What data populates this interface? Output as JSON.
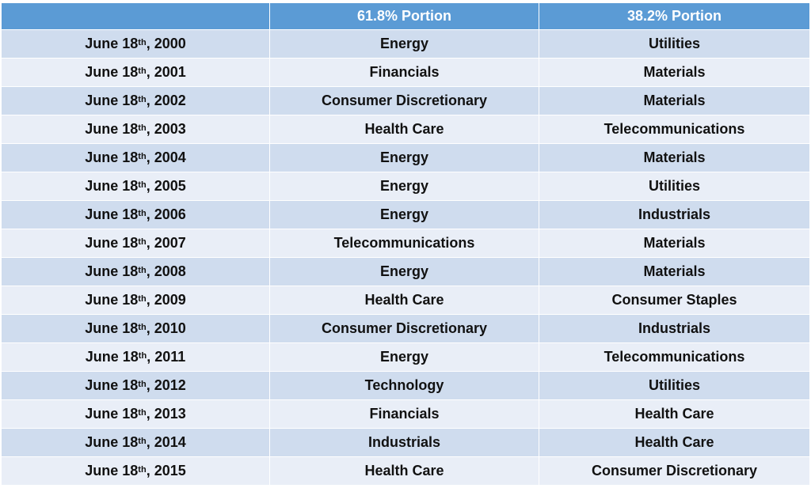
{
  "header": {
    "col0": "",
    "col1": "61.8% Portion",
    "col2": "38.2% Portion"
  },
  "rows": [
    {
      "date_pre": "June 18",
      "date_sup": "th",
      "date_post": ", 2000",
      "p618": "Energy",
      "p382": "Utilities"
    },
    {
      "date_pre": "June 18",
      "date_sup": "th",
      "date_post": ", 2001",
      "p618": "Financials",
      "p382": "Materials"
    },
    {
      "date_pre": "June 18",
      "date_sup": "th",
      "date_post": ", 2002",
      "p618": "Consumer Discretionary",
      "p382": "Materials"
    },
    {
      "date_pre": "June 18",
      "date_sup": "th",
      "date_post": ", 2003",
      "p618": "Health Care",
      "p382": "Telecommunications"
    },
    {
      "date_pre": "June 18",
      "date_sup": "th",
      "date_post": ", 2004",
      "p618": "Energy",
      "p382": "Materials"
    },
    {
      "date_pre": "June 18",
      "date_sup": "th",
      "date_post": ", 2005",
      "p618": "Energy",
      "p382": "Utilities"
    },
    {
      "date_pre": "June 18",
      "date_sup": "th",
      "date_post": ", 2006",
      "p618": "Energy",
      "p382": "Industrials"
    },
    {
      "date_pre": "June 18",
      "date_sup": "th",
      "date_post": ", 2007",
      "p618": "Telecommunications",
      "p382": "Materials"
    },
    {
      "date_pre": "June 18",
      "date_sup": "th",
      "date_post": ", 2008",
      "p618": "Energy",
      "p382": "Materials"
    },
    {
      "date_pre": "June 18",
      "date_sup": "th",
      "date_post": ", 2009",
      "p618": "Health Care",
      "p382": "Consumer Staples"
    },
    {
      "date_pre": "June 18",
      "date_sup": "th",
      "date_post": ", 2010",
      "p618": "Consumer Discretionary",
      "p382": "Industrials"
    },
    {
      "date_pre": "June 18",
      "date_sup": "th",
      "date_post": ", 2011",
      "p618": "Energy",
      "p382": "Telecommunications"
    },
    {
      "date_pre": "June 18",
      "date_sup": "th",
      "date_post": ", 2012",
      "p618": "Technology",
      "p382": "Utilities"
    },
    {
      "date_pre": "June 18",
      "date_sup": "th",
      "date_post": ", 2013",
      "p618": "Financials",
      "p382": "Health Care"
    },
    {
      "date_pre": "June 18",
      "date_sup": "th",
      "date_post": ", 2014",
      "p618": "Industrials",
      "p382": "Health Care"
    },
    {
      "date_pre": "June 18",
      "date_sup": "th",
      "date_post": ", 2015",
      "p618": "Health Care",
      "p382": "Consumer Discretionary"
    }
  ],
  "colors": {
    "header_bg": "#5b9bd5",
    "row_odd_bg": "#cfdcee",
    "row_even_bg": "#e9eef7"
  }
}
